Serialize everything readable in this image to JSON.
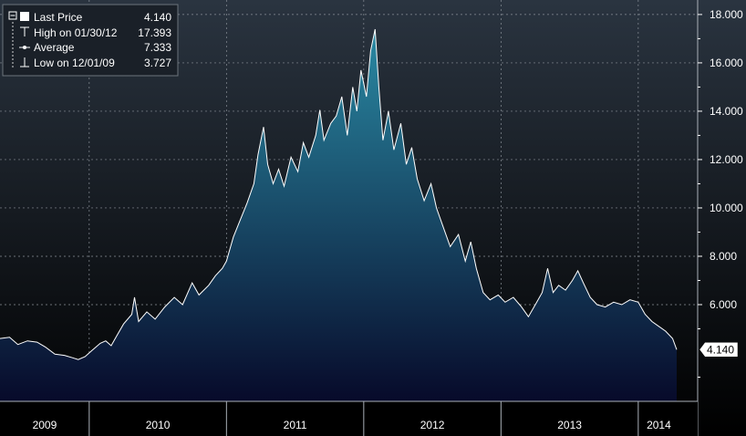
{
  "legend": {
    "last_price_label": "Last Price",
    "last_price_value": "4.140",
    "high_label": "High on 01/30/12",
    "high_value": "17.393",
    "average_label": "Average",
    "average_value": "7.333",
    "low_label": "Low on 12/01/09",
    "low_value": "3.727"
  },
  "last_price_tag": "4.140",
  "colors": {
    "background_top": "#2a3440",
    "background_bottom": "#000000",
    "area_top": "#2a8aa4",
    "area_bottom": "#070a2a",
    "line": "#ffffff",
    "grid": "#8a9098"
  },
  "chart_data": {
    "type": "area",
    "title": "",
    "xlabel": "",
    "ylabel": "",
    "grid": true,
    "legend_position": "top-left",
    "y_axis_position": "right",
    "ylim": [
      2.0,
      18.6
    ],
    "y_ticks": [
      {
        "value": 6,
        "label": "6.000"
      },
      {
        "value": 8,
        "label": "8.000"
      },
      {
        "value": 10,
        "label": "10.000"
      },
      {
        "value": 12,
        "label": "12.000"
      },
      {
        "value": 14,
        "label": "14.000"
      },
      {
        "value": 16,
        "label": "16.000"
      },
      {
        "value": 18,
        "label": "18.000"
      }
    ],
    "x_categories": [
      "2009",
      "2010",
      "2011",
      "2012",
      "2013",
      "2014"
    ],
    "x_range": [
      2009.35,
      2014.3
    ],
    "x_boundaries": [
      2010,
      2011,
      2012,
      2013,
      2014
    ],
    "series": [
      {
        "name": "Last Price",
        "points": [
          [
            2009.35,
            4.6
          ],
          [
            2009.42,
            4.65
          ],
          [
            2009.48,
            4.35
          ],
          [
            2009.55,
            4.5
          ],
          [
            2009.62,
            4.45
          ],
          [
            2009.68,
            4.25
          ],
          [
            2009.75,
            3.95
          ],
          [
            2009.82,
            3.9
          ],
          [
            2009.88,
            3.8
          ],
          [
            2009.92,
            3.727
          ],
          [
            2009.97,
            3.85
          ],
          [
            2010.02,
            4.1
          ],
          [
            2010.08,
            4.4
          ],
          [
            2010.12,
            4.5
          ],
          [
            2010.16,
            4.3
          ],
          [
            2010.2,
            4.7
          ],
          [
            2010.25,
            5.2
          ],
          [
            2010.31,
            5.6
          ],
          [
            2010.33,
            6.3
          ],
          [
            2010.36,
            5.3
          ],
          [
            2010.42,
            5.7
          ],
          [
            2010.48,
            5.4
          ],
          [
            2010.55,
            5.9
          ],
          [
            2010.62,
            6.3
          ],
          [
            2010.68,
            6.0
          ],
          [
            2010.75,
            6.9
          ],
          [
            2010.8,
            6.4
          ],
          [
            2010.87,
            6.8
          ],
          [
            2010.92,
            7.2
          ],
          [
            2010.97,
            7.5
          ],
          [
            2011.0,
            7.8
          ],
          [
            2011.05,
            8.8
          ],
          [
            2011.1,
            9.5
          ],
          [
            2011.15,
            10.2
          ],
          [
            2011.2,
            11.0
          ],
          [
            2011.23,
            12.2
          ],
          [
            2011.27,
            13.35
          ],
          [
            2011.3,
            11.8
          ],
          [
            2011.34,
            11.0
          ],
          [
            2011.38,
            11.6
          ],
          [
            2011.42,
            10.9
          ],
          [
            2011.47,
            12.1
          ],
          [
            2011.52,
            11.5
          ],
          [
            2011.56,
            12.7
          ],
          [
            2011.6,
            12.1
          ],
          [
            2011.65,
            13.0
          ],
          [
            2011.68,
            14.05
          ],
          [
            2011.71,
            12.8
          ],
          [
            2011.76,
            13.5
          ],
          [
            2011.8,
            13.8
          ],
          [
            2011.84,
            14.6
          ],
          [
            2011.88,
            13.0
          ],
          [
            2011.92,
            15.0
          ],
          [
            2011.95,
            14.0
          ],
          [
            2011.98,
            15.7
          ],
          [
            2012.02,
            14.6
          ],
          [
            2012.05,
            16.5
          ],
          [
            2012.083,
            17.393
          ],
          [
            2012.11,
            15.0
          ],
          [
            2012.14,
            12.8
          ],
          [
            2012.18,
            14.0
          ],
          [
            2012.22,
            12.4
          ],
          [
            2012.27,
            13.5
          ],
          [
            2012.31,
            11.8
          ],
          [
            2012.35,
            12.5
          ],
          [
            2012.39,
            11.2
          ],
          [
            2012.44,
            10.3
          ],
          [
            2012.49,
            11.0
          ],
          [
            2012.53,
            10.0
          ],
          [
            2012.58,
            9.2
          ],
          [
            2012.63,
            8.4
          ],
          [
            2012.69,
            8.9
          ],
          [
            2012.74,
            7.8
          ],
          [
            2012.78,
            8.6
          ],
          [
            2012.82,
            7.5
          ],
          [
            2012.87,
            6.5
          ],
          [
            2012.92,
            6.2
          ],
          [
            2012.98,
            6.4
          ],
          [
            2013.03,
            6.1
          ],
          [
            2013.09,
            6.3
          ],
          [
            2013.15,
            5.9
          ],
          [
            2013.2,
            5.5
          ],
          [
            2013.25,
            6.0
          ],
          [
            2013.3,
            6.5
          ],
          [
            2013.34,
            7.5
          ],
          [
            2013.38,
            6.5
          ],
          [
            2013.42,
            6.8
          ],
          [
            2013.47,
            6.6
          ],
          [
            2013.52,
            7.0
          ],
          [
            2013.56,
            7.4
          ],
          [
            2013.6,
            6.9
          ],
          [
            2013.65,
            6.3
          ],
          [
            2013.7,
            6.0
          ],
          [
            2013.76,
            5.9
          ],
          [
            2013.82,
            6.1
          ],
          [
            2013.88,
            6.0
          ],
          [
            2013.94,
            6.2
          ],
          [
            2014.0,
            6.1
          ],
          [
            2014.05,
            5.6
          ],
          [
            2014.1,
            5.3
          ],
          [
            2014.15,
            5.1
          ],
          [
            2014.2,
            4.9
          ],
          [
            2014.25,
            4.6
          ],
          [
            2014.28,
            4.14
          ]
        ]
      }
    ],
    "reference_lines": [
      {
        "name": "Average",
        "value": 7.333
      }
    ]
  }
}
